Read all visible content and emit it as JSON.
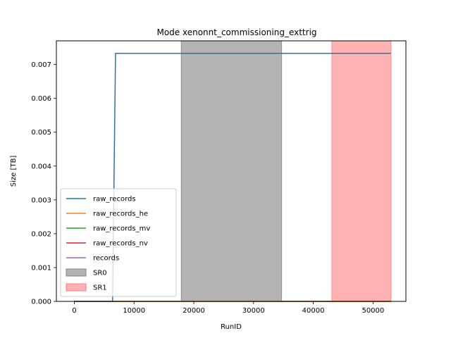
{
  "chart_data": {
    "type": "line",
    "title": "Mode xenonnt_commissioning_exttrig",
    "xlabel": "RunID",
    "ylabel": "Size [TB]",
    "xlim": [
      -3000,
      55500
    ],
    "ylim": [
      0,
      0.0077
    ],
    "xticks": [
      0,
      10000,
      20000,
      30000,
      40000,
      50000
    ],
    "xtick_labels": [
      "0",
      "10000",
      "20000",
      "30000",
      "40000",
      "50000"
    ],
    "yticks": [
      0,
      0.001,
      0.002,
      0.003,
      0.004,
      0.005,
      0.006,
      0.007
    ],
    "ytick_labels": [
      "0.000",
      "0.001",
      "0.002",
      "0.003",
      "0.004",
      "0.005",
      "0.006",
      "0.007"
    ],
    "grid": false,
    "legend_position": "lower-left",
    "series": [
      {
        "name": "raw_records",
        "color": "#1f77b4",
        "x": [
          0,
          6400,
          6900,
          53000
        ],
        "y": [
          0,
          0,
          0.00733,
          0.00733
        ]
      },
      {
        "name": "raw_records_he",
        "color": "#ff7f0e",
        "x": [
          0,
          53000
        ],
        "y": [
          0,
          0
        ]
      },
      {
        "name": "raw_records_mv",
        "color": "#2ca02c",
        "x": [
          0,
          53000
        ],
        "y": [
          0,
          0
        ]
      },
      {
        "name": "raw_records_nv",
        "color": "#d62728",
        "x": [
          0,
          53000
        ],
        "y": [
          0,
          0
        ]
      },
      {
        "name": "records",
        "color": "#9467bd",
        "x": [
          0,
          53000
        ],
        "y": [
          0,
          0
        ]
      }
    ],
    "spans": [
      {
        "name": "SR0",
        "color": "#808080",
        "opacity": 0.6,
        "x_start": 17900,
        "x_end": 34700
      },
      {
        "name": "SR1",
        "color": "#ff7f7f",
        "opacity": 0.6,
        "x_start": 43100,
        "x_end": 53000
      }
    ]
  }
}
